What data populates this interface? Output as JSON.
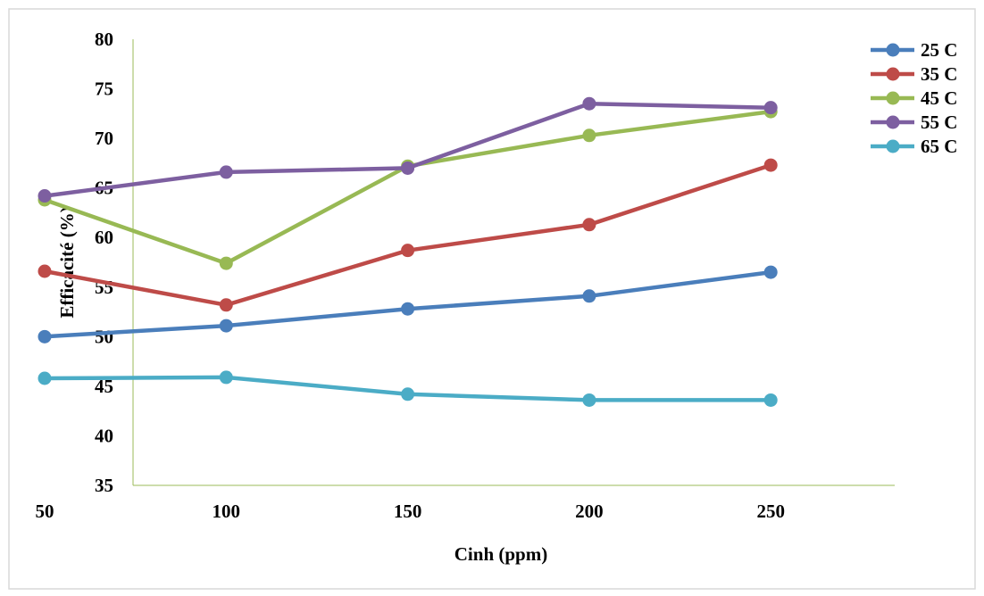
{
  "chart_data": {
    "type": "line",
    "title": "",
    "xlabel": "Cinh (ppm)",
    "ylabel": "Efficacité (%)",
    "x": [
      50,
      100,
      150,
      200,
      250
    ],
    "x_tick_labels": [
      "50",
      "100",
      "150",
      "200",
      "250"
    ],
    "ylim": [
      35,
      80
    ],
    "y_ticks": [
      35,
      40,
      45,
      50,
      55,
      60,
      65,
      70,
      75,
      80
    ],
    "y_tick_labels": [
      "35",
      "40",
      "45",
      "50",
      "55",
      "60",
      "65",
      "70",
      "75",
      "80"
    ],
    "grid": false,
    "legend_position": "top-right",
    "series": [
      {
        "name": "25 C",
        "color": "#4a7ebb",
        "values": [
          50.0,
          51.1,
          52.8,
          54.1,
          56.5
        ]
      },
      {
        "name": "35 C",
        "color": "#be4b48",
        "values": [
          56.6,
          53.2,
          58.7,
          61.3,
          67.3
        ]
      },
      {
        "name": "45 C",
        "color": "#98b954",
        "values": [
          63.8,
          57.4,
          67.2,
          70.3,
          72.7
        ]
      },
      {
        "name": "55 C",
        "color": "#7d5fa0",
        "values": [
          64.2,
          66.6,
          67.0,
          73.5,
          73.1
        ]
      },
      {
        "name": "65 C",
        "color": "#4bacc6",
        "values": [
          45.8,
          45.9,
          44.2,
          43.6,
          43.6
        ]
      }
    ]
  }
}
